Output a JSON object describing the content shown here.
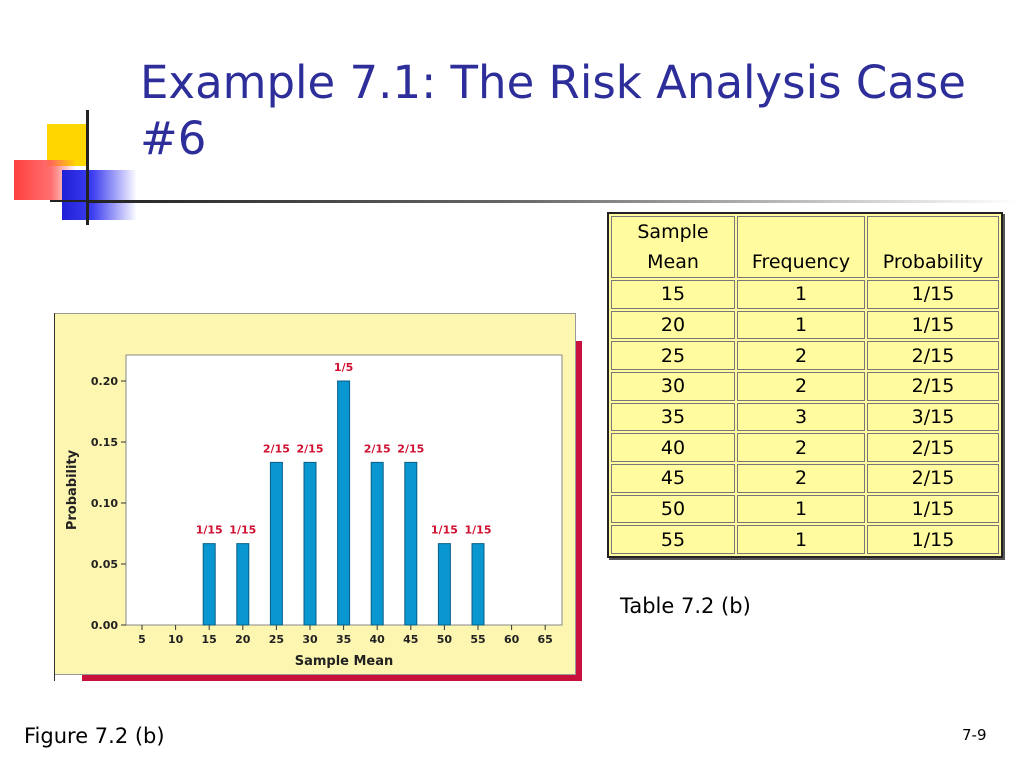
{
  "title": "Example 7.1: The Risk Analysis Case #6",
  "table": {
    "headers": [
      "Sample Mean",
      "Frequency",
      "Probability"
    ],
    "rows": [
      [
        "15",
        "1",
        "1/15"
      ],
      [
        "20",
        "1",
        "1/15"
      ],
      [
        "25",
        "2",
        "2/15"
      ],
      [
        "30",
        "2",
        "2/15"
      ],
      [
        "35",
        "3",
        "3/15"
      ],
      [
        "40",
        "2",
        "2/15"
      ],
      [
        "45",
        "2",
        "2/15"
      ],
      [
        "50",
        "1",
        "1/15"
      ],
      [
        "55",
        "1",
        "1/15"
      ]
    ],
    "caption": "Table 7.2 (b)"
  },
  "figure_caption": "Figure 7.2 (b)",
  "slide_number": "7-9",
  "colors": {
    "title": "#2e2e9a",
    "bar": "#0a96d0",
    "bar_label": "#d01030",
    "panel": "#fdf6b0",
    "shadow": "#c8103c",
    "table_bg": "#fffb9e"
  },
  "chart_data": {
    "type": "bar",
    "xlabel": "Sample Mean",
    "ylabel": "Probability",
    "x_ticks": [
      "5",
      "10",
      "15",
      "20",
      "25",
      "30",
      "35",
      "40",
      "45",
      "50",
      "55",
      "60",
      "65"
    ],
    "y_ticks": [
      "0.00",
      "0.05",
      "0.10",
      "0.15",
      "0.20"
    ],
    "ylim": [
      0,
      0.2
    ],
    "categories": [
      "15",
      "20",
      "25",
      "30",
      "35",
      "40",
      "45",
      "50",
      "55"
    ],
    "values": [
      0.0667,
      0.0667,
      0.1333,
      0.1333,
      0.2,
      0.1333,
      0.1333,
      0.0667,
      0.0667
    ],
    "labels": [
      "1/15",
      "1/15",
      "2/15",
      "2/15",
      "1/5",
      "2/15",
      "2/15",
      "1/15",
      "1/15"
    ],
    "grid": false
  }
}
